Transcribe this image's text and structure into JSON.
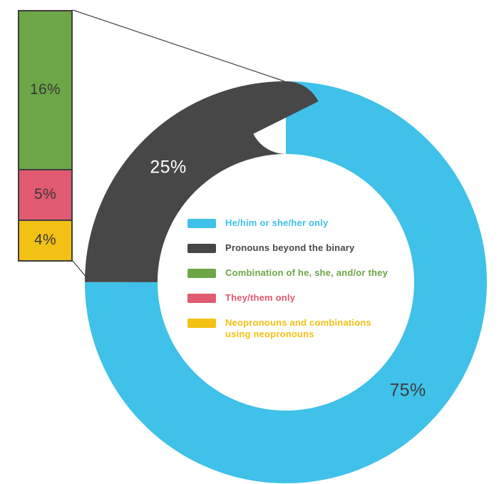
{
  "chart_data": {
    "type": "pie",
    "variant": "donut",
    "title": "",
    "unit": "%",
    "legend_position": "center-of-donut",
    "slices": [
      {
        "label": "He/him or she/her only",
        "value": 75,
        "display": "75%",
        "color": "#3fc1e9"
      },
      {
        "label": "Pronouns beyond the binary",
        "value": 25,
        "display": "25%",
        "color": "#474747"
      }
    ],
    "binary_breakdown": {
      "of_slice": "Pronouns beyond the binary",
      "total": 25,
      "segments": [
        {
          "label": "Combination of he, she, and/or they",
          "value": 16,
          "display": "16%",
          "color": "#6ca647"
        },
        {
          "label": "They/them only",
          "value": 5,
          "display": "5%",
          "color": "#e05a70"
        },
        {
          "label": "Neopronouns and combinations using neopronouns",
          "value": 4,
          "display": "4%",
          "color": "#f2c114"
        }
      ]
    },
    "legend": [
      {
        "label": "He/him or she/her only",
        "color": "#3fc1e9"
      },
      {
        "label": "Pronouns beyond the binary",
        "color": "#474747"
      },
      {
        "label": "Combination of he, she, and/or they",
        "color": "#6ca647"
      },
      {
        "label": "They/them only",
        "color": "#e05a70"
      },
      {
        "label": "Neopronouns and combinations\nusing neopronouns",
        "color": "#f2c114"
      }
    ]
  }
}
